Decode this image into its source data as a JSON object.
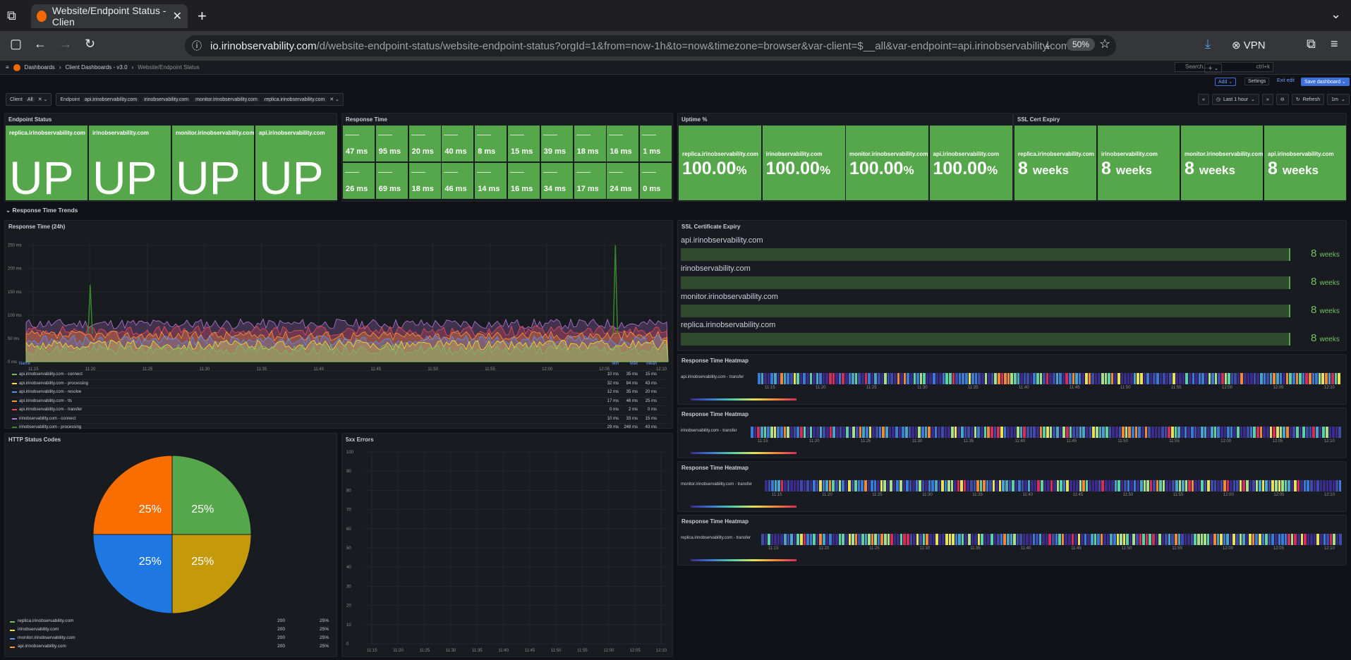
{
  "browser": {
    "tab_title": "Website/Endpoint Status - Clien",
    "url_host": "io.irinobservability.com",
    "url_path": "/d/website-endpoint-status/website-endpoint-status?orgId=1&from=now-1h&to=now&timezone=browser&var-client=$__all&var-endpoint=api.irinobservability.com&v",
    "zoom": "50%",
    "vpn": "VPN"
  },
  "breadcrumb": [
    "Dashboards",
    "Client Dashboards - v3.0",
    "Website/Endpoint Status"
  ],
  "search": {
    "placeholder": "Search...",
    "shortcut": "ctrl+k"
  },
  "toolbar": {
    "add": "Add",
    "settings": "Settings",
    "exit_edit": "Exit edit",
    "save": "Save dashboard",
    "time_range": "Last 1 hour",
    "refresh": "Refresh",
    "refresh_interval": "1m"
  },
  "variables": {
    "client_label": "Client",
    "client_value": "All",
    "endpoint_label": "Endpoint",
    "endpoints": [
      "api.irinobservability.com",
      "irinobservability.com",
      "monitor.irinobservability.com",
      "replica.irinobservability.com"
    ]
  },
  "panels": {
    "endpoint_status": {
      "title": "Endpoint Status",
      "items": [
        {
          "name": "replica.irinobservability.com",
          "value": "UP"
        },
        {
          "name": "irinobservability.com",
          "value": "UP"
        },
        {
          "name": "monitor.irinobservability.com",
          "value": "UP"
        },
        {
          "name": "api.irinobservability.com",
          "value": "UP"
        }
      ]
    },
    "response_time": {
      "title": "Response Time",
      "row1": [
        "47 ms",
        "95 ms",
        "20 ms",
        "40 ms",
        "8 ms",
        "15 ms",
        "39 ms",
        "18 ms",
        "16 ms",
        "1 ms"
      ],
      "row2": [
        "26 ms",
        "69 ms",
        "18 ms",
        "46 ms",
        "14 ms",
        "16 ms",
        "34 ms",
        "17 ms",
        "24 ms",
        "0 ms"
      ]
    },
    "uptime": {
      "title": "Uptime %",
      "items": [
        {
          "name": "replica.irinobservability.com",
          "value": "100.00",
          "unit": "%"
        },
        {
          "name": "irinobservability.com",
          "value": "100.00",
          "unit": "%"
        },
        {
          "name": "monitor.irinobservability.com",
          "value": "100.00",
          "unit": "%"
        },
        {
          "name": "api.irinobservability.com",
          "value": "100.00",
          "unit": "%"
        }
      ]
    },
    "ssl_cert": {
      "title": "SSL Cert Expiry",
      "items": [
        {
          "name": "replica.irinobservability.com",
          "value": "8",
          "unit": "weeks"
        },
        {
          "name": "irinobservability.com",
          "value": "8",
          "unit": "weeks"
        },
        {
          "name": "monitor.irinobservability.com",
          "value": "8",
          "unit": "weeks"
        },
        {
          "name": "api.irinobservability.com",
          "value": "8",
          "unit": "weeks"
        }
      ]
    },
    "section_title": "Response Time Trends",
    "rt24": {
      "title": "Response Time (24h)",
      "legend_headers": [
        "Name",
        "Min",
        "Max",
        "Mean"
      ],
      "legend": [
        {
          "name": "api.irinobservability.com - connect",
          "min": "10 ms",
          "max": "35 ms",
          "mean": "15 ms",
          "color": "#73bf69"
        },
        {
          "name": "api.irinobservability.com - processing",
          "min": "32 ms",
          "max": "84 ms",
          "mean": "43 ms",
          "color": "#fade2a"
        },
        {
          "name": "api.irinobservability.com - resolve",
          "min": "12 ms",
          "max": "35 ms",
          "mean": "20 ms",
          "color": "#5794f2"
        },
        {
          "name": "api.irinobservability.com - tls",
          "min": "17 ms",
          "max": "46 ms",
          "mean": "25 ms",
          "color": "#ff9830"
        },
        {
          "name": "api.irinobservability.com - transfer",
          "min": "0 ms",
          "max": "2 ms",
          "mean": "0 ms",
          "color": "#f2495c"
        },
        {
          "name": "irinobservability.com - connect",
          "min": "10 ms",
          "max": "33 ms",
          "mean": "15 ms",
          "color": "#b877d9"
        },
        {
          "name": "irinobservability.com - processing",
          "min": "29 ms",
          "max": "248 ms",
          "mean": "43 ms",
          "color": "#37872d"
        }
      ]
    },
    "ssl_expiry": {
      "title": "SSL Certificate Expiry",
      "items": [
        {
          "name": "api.irinobservability.com",
          "value": "8",
          "unit": "weeks"
        },
        {
          "name": "irinobservability.com",
          "value": "8",
          "unit": "weeks"
        },
        {
          "name": "monitor.irinobservability.com",
          "value": "8",
          "unit": "weeks"
        },
        {
          "name": "replica.irinobservability.com",
          "value": "8",
          "unit": "weeks"
        }
      ]
    },
    "heatmaps": [
      {
        "title": "Response Time Heatmap",
        "series": "api.irinobservability.com - transfer"
      },
      {
        "title": "Response Time Heatmap",
        "series": "irinobservability.com - transfer"
      },
      {
        "title": "Response Time Heatmap",
        "series": "monitor.irinobservability.com - transfer"
      },
      {
        "title": "Response Time Heatmap",
        "series": "replica.irinobservability.com - transfer"
      }
    ],
    "http_status": {
      "title": "HTTP Status Codes",
      "legend": [
        {
          "name": "replica.irinobservability.com",
          "code": "200",
          "pct": "25%",
          "color": "#73bf69"
        },
        {
          "name": "irinobservability.com",
          "code": "200",
          "pct": "25%",
          "color": "#fade2a"
        },
        {
          "name": "monitor.irinobservability.com",
          "code": "200",
          "pct": "25%",
          "color": "#5794f2"
        },
        {
          "name": "api.irinobservability.com",
          "code": "200",
          "pct": "25%",
          "color": "#ff9830"
        }
      ]
    },
    "errors5xx": {
      "title": "5xx Errors"
    }
  },
  "time_ticks": [
    "11:15",
    "11:20",
    "11:25",
    "11:30",
    "11:35",
    "11:40",
    "11:45",
    "11:50",
    "11:55",
    "12:00",
    "12:05",
    "12:10"
  ],
  "chart_data": [
    {
      "type": "area",
      "title": "Response Time (24h)",
      "y_ticks": [
        "0 ms",
        "50 ms",
        "100 ms",
        "150 ms",
        "200 ms",
        "250 ms"
      ],
      "ylim": [
        0,
        260
      ],
      "x": [
        "11:15",
        "11:20",
        "11:25",
        "11:30",
        "11:35",
        "11:40",
        "11:45",
        "11:50",
        "11:55",
        "12:00",
        "12:05",
        "12:10"
      ],
      "spikes": [
        {
          "x": "11:20",
          "y": 165
        },
        {
          "x": "12:06",
          "y": 250
        }
      ]
    },
    {
      "type": "pie",
      "title": "HTTP Status Codes",
      "categories": [
        "replica.irinobservability.com",
        "irinobservability.com",
        "monitor.irinobservability.com",
        "api.irinobservability.com"
      ],
      "values": [
        25,
        25,
        25,
        25
      ],
      "labels": [
        "25%",
        "25%",
        "25%",
        "25%"
      ],
      "colors": [
        "#56a64b",
        "#c4990a",
        "#1f78e1",
        "#f86e00"
      ]
    },
    {
      "type": "line",
      "title": "5xx Errors",
      "y_ticks": [
        "0",
        "10",
        "20",
        "30",
        "40",
        "50",
        "60",
        "70",
        "80",
        "90",
        "100"
      ],
      "ylim": [
        0,
        100
      ],
      "x": [
        "11:15",
        "11:20",
        "11:25",
        "11:30",
        "11:35",
        "11:40",
        "11:45",
        "11:50",
        "11:55",
        "12:00",
        "12:05",
        "12:10"
      ],
      "series": []
    }
  ]
}
